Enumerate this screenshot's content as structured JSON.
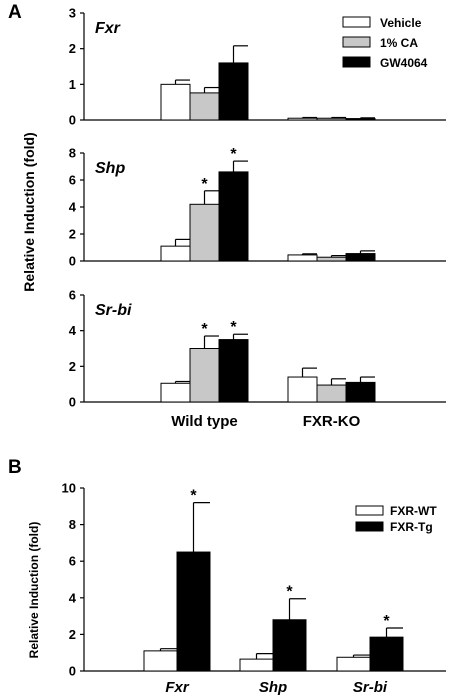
{
  "colors": {
    "vehicle": "#ffffff",
    "ca": "#c8c8c8",
    "gw4064": "#000000",
    "fxr_wt": "#ffffff",
    "fxr_tg": "#000000"
  },
  "chart_data": [
    {
      "panel": "A",
      "type": "bar",
      "ylabel": "Relative Induction (fold)",
      "categories": [
        "Wild type",
        "FXR-KO"
      ],
      "series_names": [
        "Vehicle",
        "1% CA",
        "GW4064"
      ],
      "legend_position": "top-right",
      "subpanels": [
        {
          "gene": "Fxr",
          "ylim": [
            0,
            3
          ],
          "yticks": [
            "0",
            "1",
            "2",
            "3"
          ],
          "series": [
            {
              "name": "Vehicle",
              "values": [
                1.0,
                0.05
              ],
              "errors": [
                0.12,
                0.02
              ]
            },
            {
              "name": "1% CA",
              "values": [
                0.76,
                0.05
              ],
              "errors": [
                0.15,
                0.02
              ]
            },
            {
              "name": "GW4064",
              "values": [
                1.6,
                0.04
              ],
              "errors": [
                0.48,
                0.02
              ]
            }
          ],
          "significance": []
        },
        {
          "gene": "Shp",
          "ylim": [
            0,
            8
          ],
          "yticks": [
            "0",
            "2",
            "4",
            "6",
            "8"
          ],
          "series": [
            {
              "name": "Vehicle",
              "values": [
                1.1,
                0.45
              ],
              "errors": [
                0.5,
                0.08
              ]
            },
            {
              "name": "1% CA",
              "values": [
                4.2,
                0.28
              ],
              "errors": [
                1.0,
                0.12
              ]
            },
            {
              "name": "GW4064",
              "values": [
                6.6,
                0.55
              ],
              "errors": [
                0.8,
                0.2
              ]
            }
          ],
          "significance": [
            {
              "series": 1,
              "category": 0,
              "label": "*"
            },
            {
              "series": 2,
              "category": 0,
              "label": "*"
            }
          ]
        },
        {
          "gene": "Sr-bi",
          "ylim": [
            0,
            6
          ],
          "yticks": [
            "0",
            "2",
            "4",
            "6"
          ],
          "series": [
            {
              "name": "Vehicle",
              "values": [
                1.05,
                1.4
              ],
              "errors": [
                0.1,
                0.5
              ]
            },
            {
              "name": "1% CA",
              "values": [
                3.0,
                0.95
              ],
              "errors": [
                0.7,
                0.35
              ]
            },
            {
              "name": "GW4064",
              "values": [
                3.5,
                1.1
              ],
              "errors": [
                0.3,
                0.3
              ]
            }
          ],
          "significance": [
            {
              "series": 1,
              "category": 0,
              "label": "*"
            },
            {
              "series": 2,
              "category": 0,
              "label": "*"
            }
          ]
        }
      ]
    },
    {
      "panel": "B",
      "type": "bar",
      "ylabel": "Relative Induction (fold)",
      "categories": [
        "Fxr",
        "Shp",
        "Sr-bi"
      ],
      "ylim": [
        0,
        10
      ],
      "yticks": [
        "0",
        "2",
        "4",
        "6",
        "8",
        "10"
      ],
      "legend_position": "top-right",
      "series": [
        {
          "name": "FXR-WT",
          "values": [
            1.1,
            0.65,
            0.75
          ],
          "errors": [
            0.12,
            0.3,
            0.12
          ]
        },
        {
          "name": "FXR-Tg",
          "values": [
            6.5,
            2.8,
            1.85
          ],
          "errors": [
            2.7,
            1.15,
            0.5
          ]
        }
      ],
      "significance": [
        {
          "series": 1,
          "category": 0,
          "label": "*"
        },
        {
          "series": 1,
          "category": 1,
          "label": "*"
        },
        {
          "series": 1,
          "category": 2,
          "label": "*"
        }
      ]
    }
  ]
}
